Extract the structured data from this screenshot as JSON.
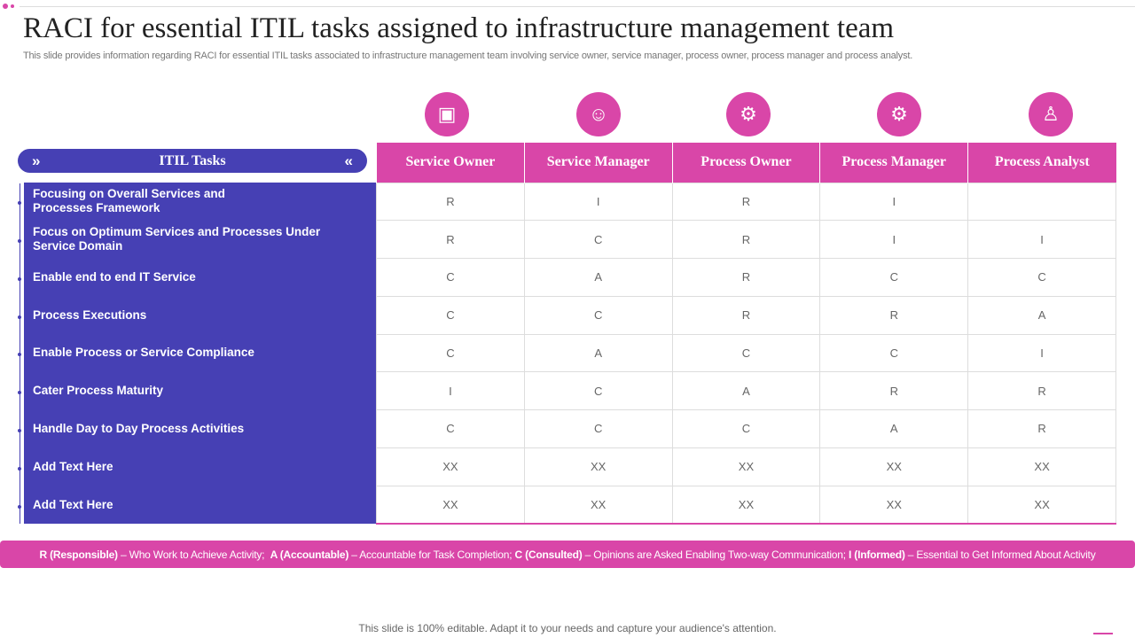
{
  "title": "RACI for essential ITIL tasks assigned to infrastructure management team",
  "subtitle": "This slide provides information regarding RACI for essential ITIL tasks associated to infrastructure management team involving service owner, service manager, process owner, process manager and process analyst.",
  "tasks_header": "ITIL Tasks",
  "roles": [
    "Service Owner",
    "Service Manager",
    "Process Owner",
    "Process Manager",
    "Process Analyst"
  ],
  "role_icons": [
    "notebook-icon",
    "manager-money-icon",
    "person-gear-icon",
    "people-gear-icon",
    "presenter-icon"
  ],
  "rows": [
    {
      "task": "Focusing on Overall Services and Processes Framework",
      "values": [
        "R",
        "I",
        "R",
        "I",
        ""
      ]
    },
    {
      "task": "Focus on Optimum Services and Processes Under Service Domain",
      "values": [
        "R",
        "C",
        "R",
        "I",
        "I"
      ]
    },
    {
      "task": "Enable end to end IT Service",
      "values": [
        "C",
        "A",
        "R",
        "C",
        "C"
      ]
    },
    {
      "task": "Process Executions",
      "values": [
        "C",
        "C",
        "R",
        "R",
        "A"
      ]
    },
    {
      "task": "Enable Process or Service Compliance",
      "values": [
        "C",
        "A",
        "C",
        "C",
        "I"
      ]
    },
    {
      "task": "Cater Process Maturity",
      "values": [
        "I",
        "C",
        "A",
        "R",
        "R"
      ]
    },
    {
      "task": "Handle Day to Day Process Activities",
      "values": [
        "C",
        "C",
        "C",
        "A",
        "R"
      ]
    },
    {
      "task": "Add Text Here",
      "values": [
        "XX",
        "XX",
        "XX",
        "XX",
        "XX"
      ]
    },
    {
      "task": "Add Text Here",
      "values": [
        "XX",
        "XX",
        "XX",
        "XX",
        "XX"
      ]
    }
  ],
  "legend": [
    {
      "key": "R (Responsible)",
      "desc": " – Who Work to Achieve Activity;  "
    },
    {
      "key": "A (Accountable)",
      "desc": " – Accountable for Task Completion; "
    },
    {
      "key": "C (Consulted)",
      "desc": " – Opinions are Asked Enabling Two-way Communication; "
    },
    {
      "key": "I (Informed)",
      "desc": " – Essential to Get Informed About Activity"
    }
  ],
  "footer": "This slide is 100% editable. Adapt it to your needs and capture your audience's attention.",
  "colors": {
    "pink": "#d946a8",
    "purple": "#4640b4"
  }
}
